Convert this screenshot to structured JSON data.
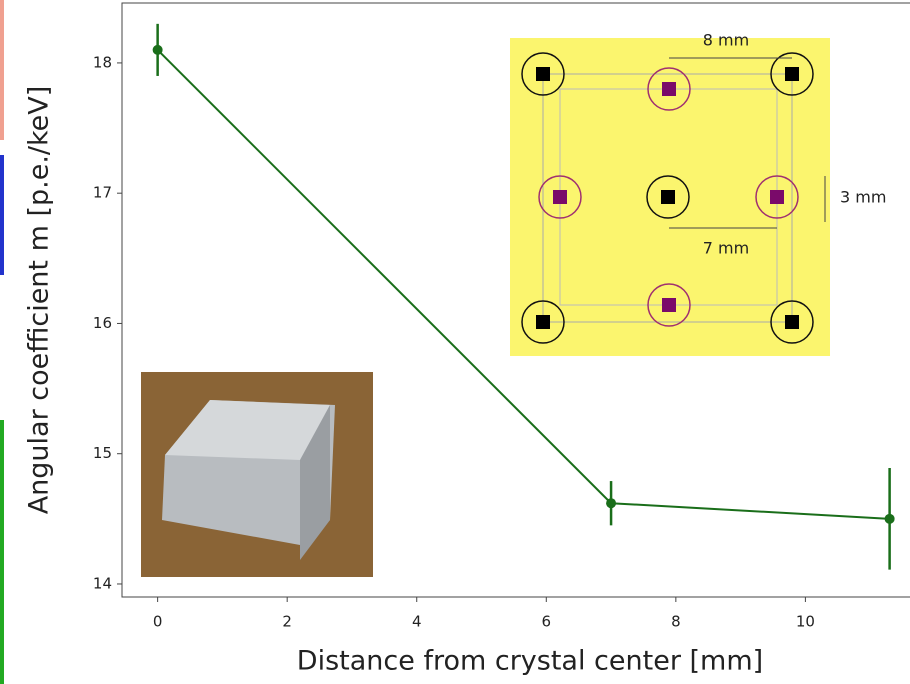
{
  "chart_data": {
    "type": "errorbar-line",
    "xlabel": "Distance from crystal center [mm]",
    "ylabel": "Angular coefficient m [p.e./keV]",
    "x": [
      0,
      7,
      11.3
    ],
    "series": [
      {
        "color": "#1a6e1a",
        "values": [
          18.1,
          14.62,
          14.5
        ],
        "errors": [
          0.2,
          0.17,
          0.39
        ]
      }
    ],
    "xlim": [
      -0.55,
      11.8
    ],
    "ylim": [
      13.9,
      18.46
    ],
    "xticks": [
      0,
      2,
      4,
      6,
      8,
      10
    ],
    "yticks": [
      14,
      15,
      16,
      17,
      18
    ],
    "annotations": [
      "8 mm",
      "3 mm",
      "7 mm"
    ]
  }
}
